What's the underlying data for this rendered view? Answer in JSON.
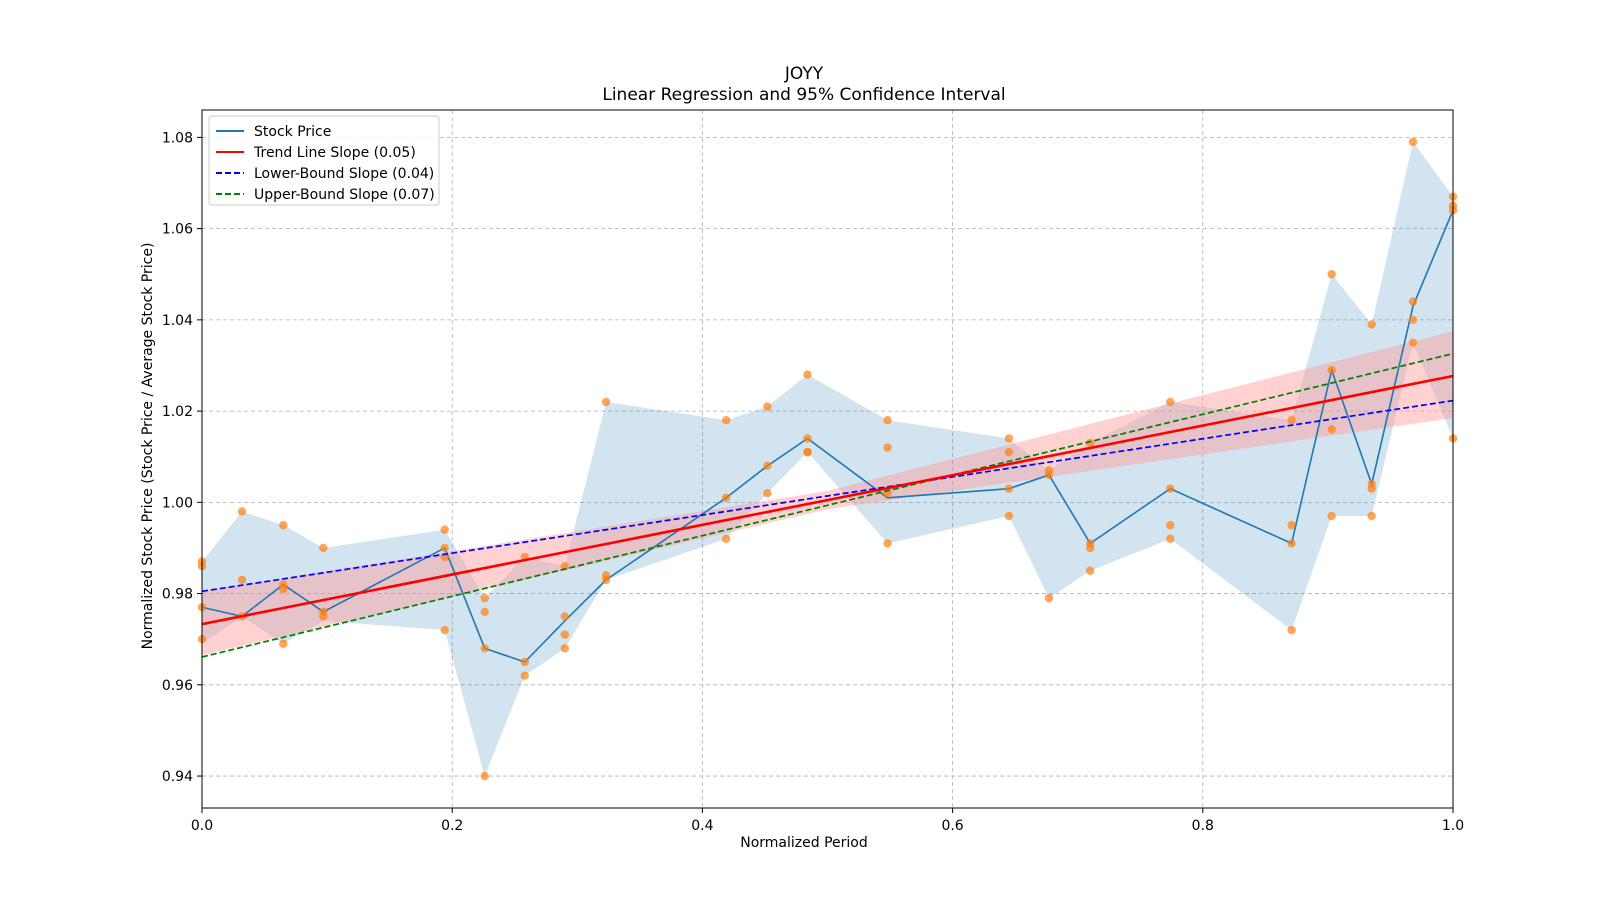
{
  "chart_data": {
    "type": "line",
    "title": "JOYY",
    "subtitle": "Linear Regression and 95% Confidence Interval",
    "xlabel": "Normalized Period",
    "ylabel": "Normalized Stock Price (Stock Price / Average Stock Price)",
    "xlim": [
      0.0,
      1.0
    ],
    "ylim": [
      0.933,
      1.086
    ],
    "xticks": [
      "0.0",
      "0.2",
      "0.4",
      "0.6",
      "0.8",
      "1.0"
    ],
    "yticks": [
      "0.94",
      "0.96",
      "0.98",
      "1.00",
      "1.02",
      "1.04",
      "1.06",
      "1.08"
    ],
    "grid": true,
    "legend_position": "top-left",
    "colors": {
      "stock": "#1f77b4",
      "band": "#1f77b4",
      "scatter": "#ff7f0e",
      "trend": "#ff0000",
      "trend_ci": "#ff9999",
      "lower": "#0000ff",
      "upper": "#008000"
    },
    "legend": [
      {
        "label": "Stock Price",
        "color": "#1f77b4",
        "style": "solid"
      },
      {
        "label": "Trend Line Slope (0.05)",
        "color": "#ff0000",
        "style": "solid"
      },
      {
        "label": "Lower-Bound Slope (0.04)",
        "color": "#0000ff",
        "style": "dashed"
      },
      {
        "label": "Upper-Bound Slope (0.07)",
        "color": "#008000",
        "style": "dashed"
      }
    ],
    "stock_price": {
      "x": [
        0.0,
        0.032,
        0.065,
        0.097,
        0.194,
        0.226,
        0.258,
        0.29,
        0.323,
        0.419,
        0.452,
        0.484,
        0.548,
        0.645,
        0.677,
        0.71,
        0.774,
        0.871,
        0.903,
        0.935,
        0.968,
        1.0
      ],
      "y": [
        0.977,
        0.975,
        0.982,
        0.976,
        0.99,
        0.968,
        0.965,
        0.974,
        0.983,
        1.001,
        1.008,
        1.014,
        1.001,
        1.003,
        1.006,
        0.991,
        1.003,
        0.991,
        1.029,
        1.004,
        1.043,
        1.064
      ]
    },
    "price_band": {
      "lower": [
        0.969,
        0.975,
        0.969,
        0.974,
        0.972,
        0.94,
        0.962,
        0.968,
        0.983,
        0.992,
        1.002,
        1.011,
        0.991,
        0.997,
        0.979,
        0.985,
        0.992,
        0.972,
        0.997,
        0.997,
        1.035,
        1.014
      ],
      "upper": [
        0.987,
        0.998,
        0.995,
        0.99,
        0.994,
        0.979,
        0.988,
        0.986,
        1.022,
        1.018,
        1.021,
        1.028,
        1.018,
        1.014,
        1.007,
        1.013,
        1.022,
        1.018,
        1.05,
        1.039,
        1.079,
        1.067
      ]
    },
    "scatter_points": {
      "x": [
        0.0,
        0.0,
        0.0,
        0.0,
        0.032,
        0.032,
        0.032,
        0.065,
        0.065,
        0.065,
        0.065,
        0.097,
        0.097,
        0.097,
        0.194,
        0.194,
        0.194,
        0.194,
        0.226,
        0.226,
        0.226,
        0.226,
        0.258,
        0.258,
        0.258,
        0.29,
        0.29,
        0.29,
        0.29,
        0.323,
        0.323,
        0.323,
        0.419,
        0.419,
        0.419,
        0.452,
        0.452,
        0.452,
        0.484,
        0.484,
        0.484,
        0.484,
        0.548,
        0.548,
        0.548,
        0.548,
        0.645,
        0.645,
        0.645,
        0.645,
        0.677,
        0.677,
        0.677,
        0.71,
        0.71,
        0.71,
        0.71,
        0.774,
        0.774,
        0.774,
        0.774,
        0.871,
        0.871,
        0.871,
        0.871,
        0.903,
        0.903,
        0.903,
        0.903,
        0.935,
        0.935,
        0.935,
        0.935,
        0.968,
        0.968,
        0.968,
        0.968,
        1.0,
        1.0,
        1.0,
        1.0
      ],
      "y": [
        0.987,
        0.986,
        0.977,
        0.97,
        0.998,
        0.983,
        0.975,
        0.995,
        0.982,
        0.981,
        0.969,
        0.99,
        0.976,
        0.975,
        0.994,
        0.99,
        0.988,
        0.972,
        0.979,
        0.976,
        0.968,
        0.94,
        0.988,
        0.965,
        0.962,
        0.986,
        0.975,
        0.971,
        0.968,
        1.022,
        0.984,
        0.983,
        1.018,
        1.001,
        0.992,
        1.021,
        1.008,
        1.002,
        1.028,
        1.014,
        1.011,
        1.011,
        1.018,
        1.012,
        1.002,
        0.991,
        1.014,
        1.011,
        1.003,
        0.997,
        1.007,
        1.006,
        0.979,
        1.013,
        0.991,
        0.99,
        0.985,
        1.022,
        1.003,
        0.995,
        0.992,
        1.018,
        0.995,
        0.991,
        0.972,
        1.05,
        1.029,
        1.016,
        0.997,
        1.039,
        1.004,
        1.003,
        0.997,
        1.079,
        1.044,
        1.04,
        1.035,
        1.067,
        1.065,
        1.064,
        1.014
      ]
    },
    "trend_line": {
      "x": [
        0.0,
        1.0
      ],
      "y": [
        0.9733,
        1.0277
      ]
    },
    "trend_ci": {
      "x": [
        0.0,
        0.5,
        1.0
      ],
      "lower": [
        0.9665,
        0.9985,
        1.0185
      ],
      "upper": [
        0.9805,
        1.0025,
        1.0375
      ]
    },
    "lower_bound_line": {
      "x": [
        0.0,
        1.0
      ],
      "y": [
        0.9805,
        1.0223
      ]
    },
    "upper_bound_line": {
      "x": [
        0.0,
        1.0
      ],
      "y": [
        0.9661,
        1.0326
      ]
    }
  }
}
